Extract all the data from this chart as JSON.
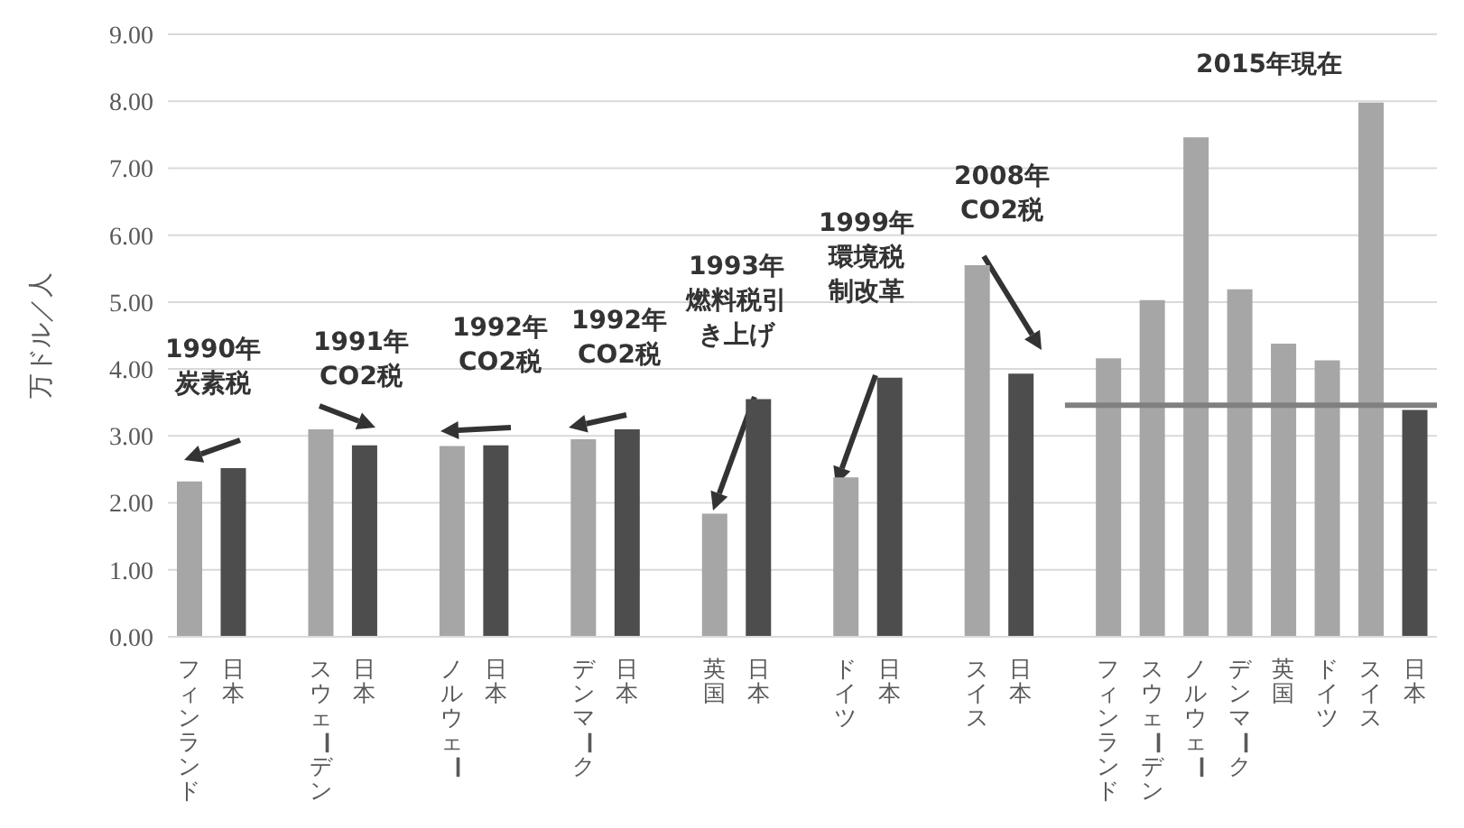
{
  "chart_data": {
    "type": "bar",
    "ylabel": "万ドル／人",
    "categories": [
      "フィンランド",
      "日本",
      null,
      "スウェーデン",
      "日本",
      null,
      "ノルウェー",
      "日本",
      null,
      "デンマーク",
      "日本",
      null,
      "英国",
      "日本",
      null,
      "ドイツ",
      "日本",
      null,
      "スイス",
      "日本",
      null,
      "フィンランド",
      "スウェーデン",
      "ノルウェー",
      "デンマーク",
      "英国",
      "ドイツ",
      "スイス",
      "日本"
    ],
    "values": [
      2.32,
      2.52,
      null,
      3.1,
      2.86,
      null,
      2.85,
      2.86,
      null,
      2.95,
      3.1,
      null,
      1.84,
      3.55,
      null,
      2.38,
      3.87,
      null,
      5.55,
      3.93,
      null,
      4.16,
      5.03,
      7.46,
      5.19,
      4.38,
      4.13,
      7.98,
      3.39
    ],
    "colors": [
      "#a6a6a6",
      "#4d4d4d",
      null,
      "#a6a6a6",
      "#4d4d4d",
      null,
      "#a6a6a6",
      "#4d4d4d",
      null,
      "#a6a6a6",
      "#4d4d4d",
      null,
      "#a6a6a6",
      "#4d4d4d",
      null,
      "#a6a6a6",
      "#4d4d4d",
      null,
      "#a6a6a6",
      "#4d4d4d",
      null,
      "#a6a6a6",
      "#a6a6a6",
      "#a6a6a6",
      "#a6a6a6",
      "#a6a6a6",
      "#a6a6a6",
      "#a6a6a6",
      "#4d4d4d"
    ],
    "ylim": [
      0,
      9
    ],
    "yticks": [
      {
        "value": 0,
        "label": "0.00"
      },
      {
        "value": 1,
        "label": "1.00"
      },
      {
        "value": 2,
        "label": "2.00"
      },
      {
        "value": 3,
        "label": "3.00"
      },
      {
        "value": 4,
        "label": "4.00"
      },
      {
        "value": 5,
        "label": "5.00"
      },
      {
        "value": 6,
        "label": "6.00"
      },
      {
        "value": 7,
        "label": "7.00"
      },
      {
        "value": 8,
        "label": "8.00"
      },
      {
        "value": 9,
        "label": "9.00"
      }
    ],
    "grid": "y",
    "ref_lines": [
      {
        "axis": "y",
        "value": 3.46,
        "color": "#808080"
      }
    ],
    "annotations": [
      "1990年炭素税",
      "1991年 CO2税",
      "1992年 CO2税",
      "1992年 CO2税",
      "1993年燃料税引き上げ",
      "1999年環境税制改革",
      "2008年 CO2税",
      "2015年現在"
    ]
  }
}
